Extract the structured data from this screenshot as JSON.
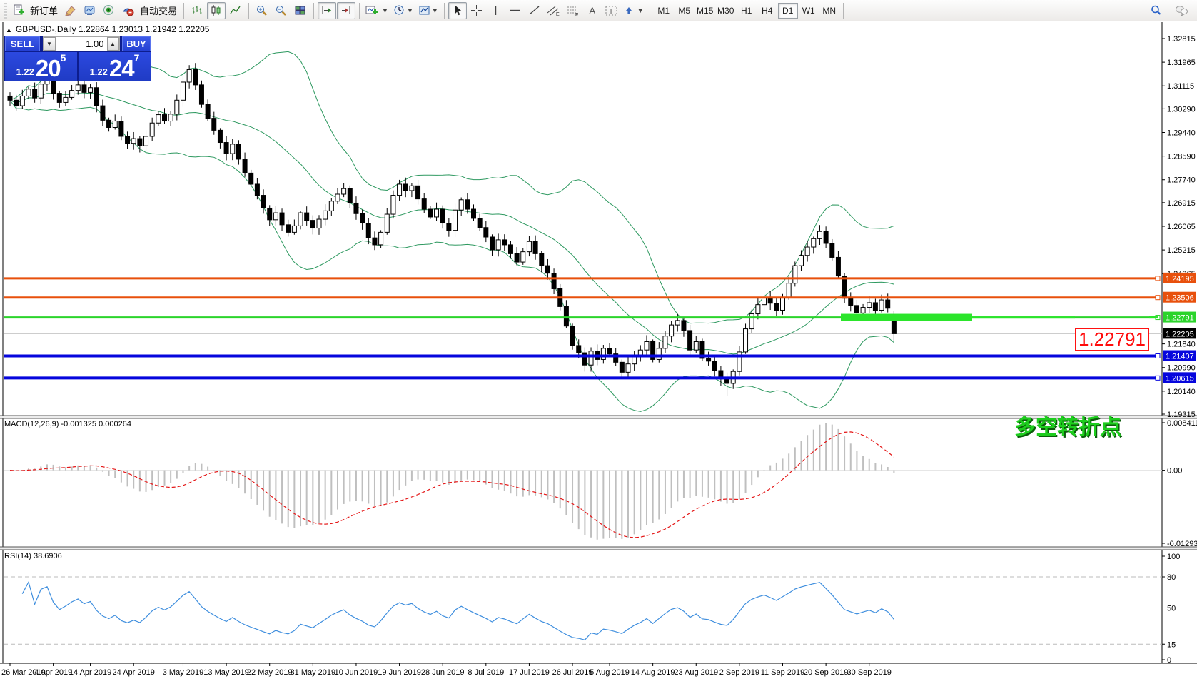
{
  "toolbar": {
    "new_order_label": "新订单",
    "autotrade_label": "自动交易",
    "timeframes": [
      "M1",
      "M5",
      "M15",
      "M30",
      "H1",
      "H4",
      "D1",
      "W1",
      "MN"
    ],
    "active_timeframe": "D1",
    "text_tool_label": "A",
    "channel_sub": "E",
    "fibo_sub": "F"
  },
  "window": {
    "title_symbol": "GBPUSD-,Daily",
    "title_ohlc": "1.22864 1.23013 1.21942 1.22205"
  },
  "trade_panel": {
    "sell_label": "SELL",
    "buy_label": "BUY",
    "volume": "1.00",
    "sell_small": "1.22",
    "sell_big": "20",
    "sell_sup": "5",
    "buy_small": "1.22",
    "buy_big": "24",
    "buy_sup": "7"
  },
  "price_axis": {
    "ticks": [
      "1.32815",
      "1.31965",
      "1.31115",
      "1.30290",
      "1.29440",
      "1.28590",
      "1.27740",
      "1.26915",
      "1.26065",
      "1.25215",
      "1.24365",
      "1.21840",
      "1.20990",
      "1.20140",
      "1.19315"
    ]
  },
  "horizontal_lines": [
    {
      "price": 1.24195,
      "label": "1.24195",
      "color": "#e8500c",
      "width": 3
    },
    {
      "price": 1.23506,
      "label": "1.23506",
      "color": "#e8500c",
      "width": 3
    },
    {
      "price": 1.22791,
      "label": "1.22791",
      "color": "#2bd42b",
      "width": 3
    },
    {
      "price": 1.21407,
      "label": "1.21407",
      "color": "#0606dd",
      "width": 4
    },
    {
      "price": 1.20615,
      "label": "1.20615",
      "color": "#0606dd",
      "width": 4
    }
  ],
  "current_price": {
    "price": 1.22205,
    "label": "1.22205",
    "line_color": "#c6c6c6",
    "label_bg": "#000000"
  },
  "annotations": {
    "price_callout": "1.22791",
    "turning_point_text": "多空转折点",
    "highlight_color": "#2be52b"
  },
  "indicator_panes": {
    "macd": {
      "label": "MACD(12,26,9) -0.001325 0.000264",
      "axis": [
        "0.008411",
        "0.00",
        "-0.012931"
      ],
      "bar_color": "#bfbfbf",
      "signal_color": "#e41616"
    },
    "rsi": {
      "label": "RSI(14) 38.6906",
      "axis": [
        "100",
        "80",
        "50",
        "15",
        "0"
      ],
      "levels": [
        80,
        50,
        15
      ],
      "line_color": "#3e8ede"
    }
  },
  "date_axis": {
    "labels": [
      "26 Mar 2019",
      "4 Apr 2019",
      "14 Apr 2019",
      "24 Apr 2019",
      "3 May 2019",
      "13 May 2019",
      "22 May 2019",
      "31 May 2019",
      "10 Jun 2019",
      "19 Jun 2019",
      "28 Jun 2019",
      "8 Jul 2019",
      "17 Jul 2019",
      "26 Jul 2019",
      "5 Aug 2019",
      "14 Aug 2019",
      "23 Aug 2019",
      "2 Sep 2019",
      "11 Sep 2019",
      "20 Sep 2019",
      "30 Sep 2019"
    ],
    "indices": [
      0,
      7,
      13,
      20,
      28,
      35,
      42,
      49,
      56,
      63,
      70,
      77,
      84,
      91,
      97,
      104,
      111,
      118,
      125,
      132,
      139
    ]
  },
  "chart_data": {
    "type": "candlestick",
    "symbol": "GBPUSD-",
    "timeframe": "Daily",
    "bollinger": {
      "period": 20,
      "deviation": 2,
      "color": "#2e9960"
    },
    "first_open": 1.3075,
    "closes": [
      1.306,
      1.304,
      1.3075,
      1.31,
      1.3068,
      1.3118,
      1.3132,
      1.3085,
      1.3052,
      1.307,
      1.3095,
      1.3115,
      1.3088,
      1.3105,
      1.304,
      1.2988,
      1.2962,
      1.2985,
      1.293,
      1.2905,
      1.2922,
      1.2896,
      1.293,
      1.2978,
      1.3008,
      1.2985,
      1.301,
      1.306,
      1.3125,
      1.317,
      1.3115,
      1.3045,
      1.2995,
      1.2952,
      1.2908,
      1.2868,
      1.2902,
      1.2848,
      1.2798,
      1.2758,
      1.2718,
      1.2672,
      1.263,
      1.2655,
      1.2612,
      1.2585,
      1.2608,
      1.2655,
      1.2628,
      1.26,
      1.2632,
      1.2662,
      1.2697,
      1.2722,
      1.2742,
      1.269,
      1.2652,
      1.2618,
      1.2565,
      1.254,
      1.2585,
      1.265,
      1.2718,
      1.2758,
      1.2735,
      1.2752,
      1.2705,
      1.2668,
      1.264,
      1.2668,
      1.2618,
      1.2592,
      1.2665,
      1.2702,
      1.2668,
      1.2635,
      1.2602,
      1.2568,
      1.2522,
      1.2558,
      1.254,
      1.2508,
      1.2478,
      1.2515,
      1.2552,
      1.2508,
      1.2465,
      1.2438,
      1.2382,
      1.2318,
      1.2248,
      1.2178,
      1.2152,
      1.2108,
      1.2158,
      1.2128,
      1.2168,
      1.2148,
      1.2118,
      1.2082,
      1.2112,
      1.2142,
      1.2162,
      1.2192,
      1.2128,
      1.2168,
      1.2212,
      1.2252,
      1.2268,
      1.2232,
      1.2162,
      1.2192,
      1.2132,
      1.2122,
      1.2088,
      1.2058,
      1.2042,
      1.2085,
      1.2155,
      1.2238,
      1.2292,
      1.2325,
      1.2352,
      1.233,
      1.2305,
      1.2352,
      1.2402,
      1.2465,
      1.2502,
      1.2532,
      1.2562,
      1.2588,
      1.2545,
      1.2495,
      1.2428,
      1.2348,
      1.2322,
      1.2295,
      1.2315,
      1.2332,
      1.2305,
      1.2342,
      1.2312,
      1.22205
    ],
    "overrides": {
      "29": {
        "high": 1.3186
      },
      "116": {
        "low": 1.1996
      },
      "143": {
        "open": 1.22864,
        "high": 1.23013,
        "low": 1.21942
      }
    }
  }
}
